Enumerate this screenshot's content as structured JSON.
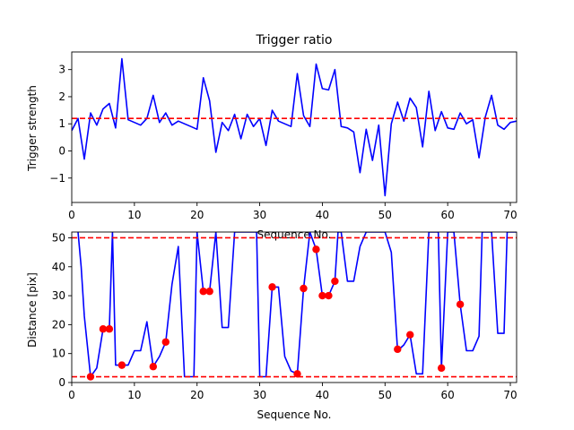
{
  "chart_data": [
    {
      "type": "line",
      "title": "Trigger ratio",
      "xlabel": "Sequence No.",
      "ylabel": "Trigger strength",
      "xlim": [
        0,
        71
      ],
      "ylim": [
        -1.9,
        3.65
      ],
      "xticks": [
        0,
        10,
        20,
        30,
        40,
        50,
        60,
        70
      ],
      "yticks": [
        -1,
        0,
        1,
        2,
        3
      ],
      "grid": false,
      "series": [
        {
          "color": "#0000ff",
          "x": [
            0,
            1,
            2,
            3,
            4,
            5,
            6,
            7,
            8,
            9,
            10,
            11,
            12,
            13,
            14,
            15,
            16,
            17,
            18,
            19,
            20,
            21,
            22,
            23,
            24,
            25,
            26,
            27,
            28,
            29,
            30,
            31,
            32,
            33,
            34,
            35,
            36,
            37,
            38,
            39,
            40,
            41,
            42,
            43,
            44,
            45,
            46,
            47,
            48,
            49,
            50,
            51,
            52,
            53,
            54,
            55,
            56,
            57,
            58,
            59,
            60,
            61,
            62,
            63,
            64,
            65,
            66,
            67,
            68,
            69,
            70,
            71
          ],
          "y": [
            0.75,
            1.2,
            -0.3,
            1.4,
            0.95,
            1.55,
            1.75,
            0.85,
            3.4,
            1.15,
            1.05,
            0.95,
            1.2,
            2.05,
            1.05,
            1.4,
            0.95,
            1.1,
            1.0,
            0.9,
            0.8,
            2.7,
            1.85,
            -0.05,
            1.05,
            0.75,
            1.35,
            0.45,
            1.35,
            0.9,
            1.2,
            0.2,
            1.5,
            1.1,
            1.0,
            0.9,
            2.85,
            1.3,
            0.9,
            3.2,
            2.3,
            2.25,
            3.0,
            0.9,
            0.85,
            0.7,
            -0.8,
            0.8,
            -0.35,
            0.95,
            -1.65,
            1.0,
            1.8,
            1.1,
            1.95,
            1.6,
            0.15,
            2.2,
            0.75,
            1.45,
            0.85,
            0.8,
            1.4,
            1.0,
            1.15,
            -0.25,
            1.25,
            2.05,
            0.95,
            0.8,
            1.05,
            1.1
          ]
        }
      ],
      "reference_lines": [
        {
          "axis": "y",
          "value": 1.2,
          "color": "#ff0000",
          "style": "dashed"
        }
      ]
    },
    {
      "type": "line",
      "xlabel": "Sequence No.",
      "ylabel": "Distance [pix]",
      "xlim": [
        0,
        71
      ],
      "ylim": [
        0,
        52
      ],
      "xticks": [
        0,
        10,
        20,
        30,
        40,
        50,
        60,
        70
      ],
      "yticks": [
        0,
        10,
        20,
        30,
        40,
        50
      ],
      "grid": false,
      "series": [
        {
          "color": "#0000ff",
          "x": [
            1,
            1.5,
            2,
            3,
            4,
            5,
            5.5,
            6,
            6.5,
            7,
            8,
            9,
            10,
            11,
            12,
            13,
            14,
            15,
            16,
            17,
            18,
            19,
            19.5,
            20,
            21,
            22,
            23,
            24,
            25,
            26,
            26.5,
            27,
            28,
            29,
            29.5,
            30,
            30.5,
            31,
            32,
            33,
            34,
            35,
            36,
            37,
            38,
            39,
            40,
            41,
            42,
            42.5,
            43,
            44,
            45,
            46,
            47,
            47.5,
            48,
            49,
            50,
            51,
            52,
            53,
            54,
            55,
            56,
            57,
            57.5,
            58,
            58.5,
            59,
            60,
            60.5,
            61,
            62,
            63,
            64,
            65,
            65.5,
            66,
            67,
            68,
            68.5,
            69,
            69.5,
            70,
            71
          ],
          "x_note_free": true,
          "y": [
            52,
            40,
            23,
            2,
            5,
            18.5,
            18.5,
            18.5,
            52,
            6,
            6,
            6,
            11,
            11,
            21,
            5.5,
            9,
            14,
            34,
            47,
            2,
            2,
            2,
            52,
            31.5,
            31.5,
            52,
            19,
            19,
            52,
            52,
            52,
            52,
            52,
            52,
            2,
            2,
            2,
            33,
            33,
            9,
            4,
            3,
            32.5,
            52,
            46,
            30,
            30,
            35,
            52,
            52,
            35,
            35,
            47,
            52,
            52,
            52,
            52,
            52,
            45,
            11,
            13,
            16.5,
            3,
            3,
            52,
            52,
            52,
            52,
            5,
            52,
            52,
            52,
            27,
            11,
            11,
            16,
            52,
            52,
            52,
            17,
            17,
            17,
            52,
            52,
            52
          ]
        }
      ],
      "points": {
        "color": "#ff0000",
        "x": [
          3,
          5,
          6,
          8,
          13,
          15,
          21,
          22,
          32,
          36,
          37,
          39,
          40,
          41,
          42,
          52,
          54,
          59,
          62
        ],
        "y": [
          2,
          18.5,
          18.5,
          6,
          5.5,
          14,
          31.5,
          31.5,
          33,
          3,
          32.5,
          46,
          30,
          30,
          35,
          11.5,
          16.5,
          5,
          27
        ]
      },
      "reference_lines": [
        {
          "axis": "y",
          "value": 50,
          "color": "#ff0000",
          "style": "dashed"
        },
        {
          "axis": "y",
          "value": 2,
          "color": "#ff0000",
          "style": "dashed"
        }
      ]
    }
  ]
}
